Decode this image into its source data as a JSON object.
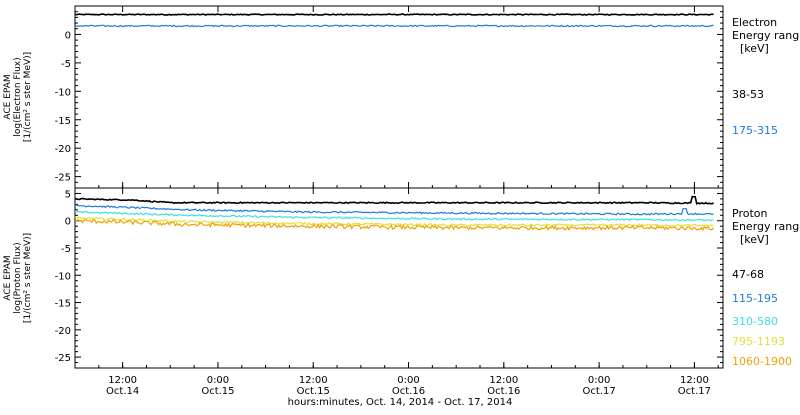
{
  "chart_data": [
    {
      "type": "line",
      "ylabel": [
        "ACE EPAM",
        "log(Electron Flux)",
        "[1/(cm² s ster MeV)]"
      ],
      "ylim": [
        -27,
        5
      ],
      "yticks": [
        0,
        -5,
        -10,
        -15,
        -20,
        -25
      ],
      "legend_title": [
        "Electron",
        "Energy ranges",
        "[keV]"
      ],
      "series": [
        {
          "name": "38-53",
          "color": "#000000",
          "level": 3.5,
          "noise": 0.08
        },
        {
          "name": "175-315",
          "color": "#1f7bd6",
          "level": 1.5,
          "noise": 0.12
        }
      ]
    },
    {
      "type": "line",
      "ylabel": [
        "ACE EPAM",
        "log(Proton Flux)",
        "[1/(cm² s ster MeV)]"
      ],
      "ylim": [
        -27,
        6
      ],
      "yticks": [
        5,
        0,
        -5,
        -10,
        -15,
        -20,
        -25
      ],
      "legend_title": [
        "Proton",
        "Energy ranges",
        "[keV]"
      ],
      "series": [
        {
          "name": "47-68",
          "color": "#000000",
          "noise": 0.1,
          "points": [
            [
              0,
              4.0
            ],
            [
              0.3,
              3.8
            ],
            [
              0.5,
              3.3
            ],
            [
              3.0,
              3.3
            ],
            [
              3.35,
              3.2
            ]
          ],
          "spike": [
            3.25,
            4.4
          ]
        },
        {
          "name": "115-195",
          "color": "#1f7bd6",
          "noise": 0.15,
          "points": [
            [
              0,
              2.8
            ],
            [
              0.3,
              2.4
            ],
            [
              0.6,
              2.0
            ],
            [
              1.2,
              1.6
            ],
            [
              2.0,
              1.4
            ],
            [
              3.0,
              1.2
            ],
            [
              3.2,
              1.3
            ],
            [
              3.35,
              1.2
            ]
          ],
          "spike": [
            3.2,
            2.2
          ]
        },
        {
          "name": "310-580",
          "color": "#3fe0e0",
          "noise": 0.15,
          "points": [
            [
              0,
              1.6
            ],
            [
              0.3,
              1.3
            ],
            [
              0.6,
              1.0
            ],
            [
              1.2,
              0.6
            ],
            [
              2.0,
              0.3
            ],
            [
              3.0,
              0.2
            ],
            [
              3.35,
              0.1
            ]
          ]
        },
        {
          "name": "795-1193",
          "color": "#e0e040",
          "noise": 0.2,
          "points": [
            [
              0,
              0.5
            ],
            [
              0.3,
              0.2
            ],
            [
              0.6,
              -0.2
            ],
            [
              1.2,
              -0.5
            ],
            [
              2.0,
              -0.8
            ],
            [
              3.0,
              -0.8
            ],
            [
              3.35,
              -0.9
            ]
          ]
        },
        {
          "name": "1060-1900",
          "color": "#f0a000",
          "noise": 0.35,
          "points": [
            [
              0,
              0.0
            ],
            [
              0.3,
              -0.3
            ],
            [
              0.6,
              -0.7
            ],
            [
              1.2,
              -1.0
            ],
            [
              2.0,
              -1.3
            ],
            [
              3.0,
              -1.3
            ],
            [
              3.35,
              -1.4
            ]
          ]
        }
      ]
    }
  ],
  "x_axis": {
    "ticks": [
      {
        "time": "12:00",
        "day": "Oct.14"
      },
      {
        "time": "0:00",
        "day": "Oct.15"
      },
      {
        "time": "12:00",
        "day": "Oct.15"
      },
      {
        "time": "0:00",
        "day": "Oct.16"
      },
      {
        "time": "12:00",
        "day": "Oct.16"
      },
      {
        "time": "0:00",
        "day": "Oct.17"
      },
      {
        "time": "12:00",
        "day": "Oct.17"
      }
    ],
    "label": "hours:minutes, Oct. 14, 2014 - Oct. 17, 2014"
  }
}
